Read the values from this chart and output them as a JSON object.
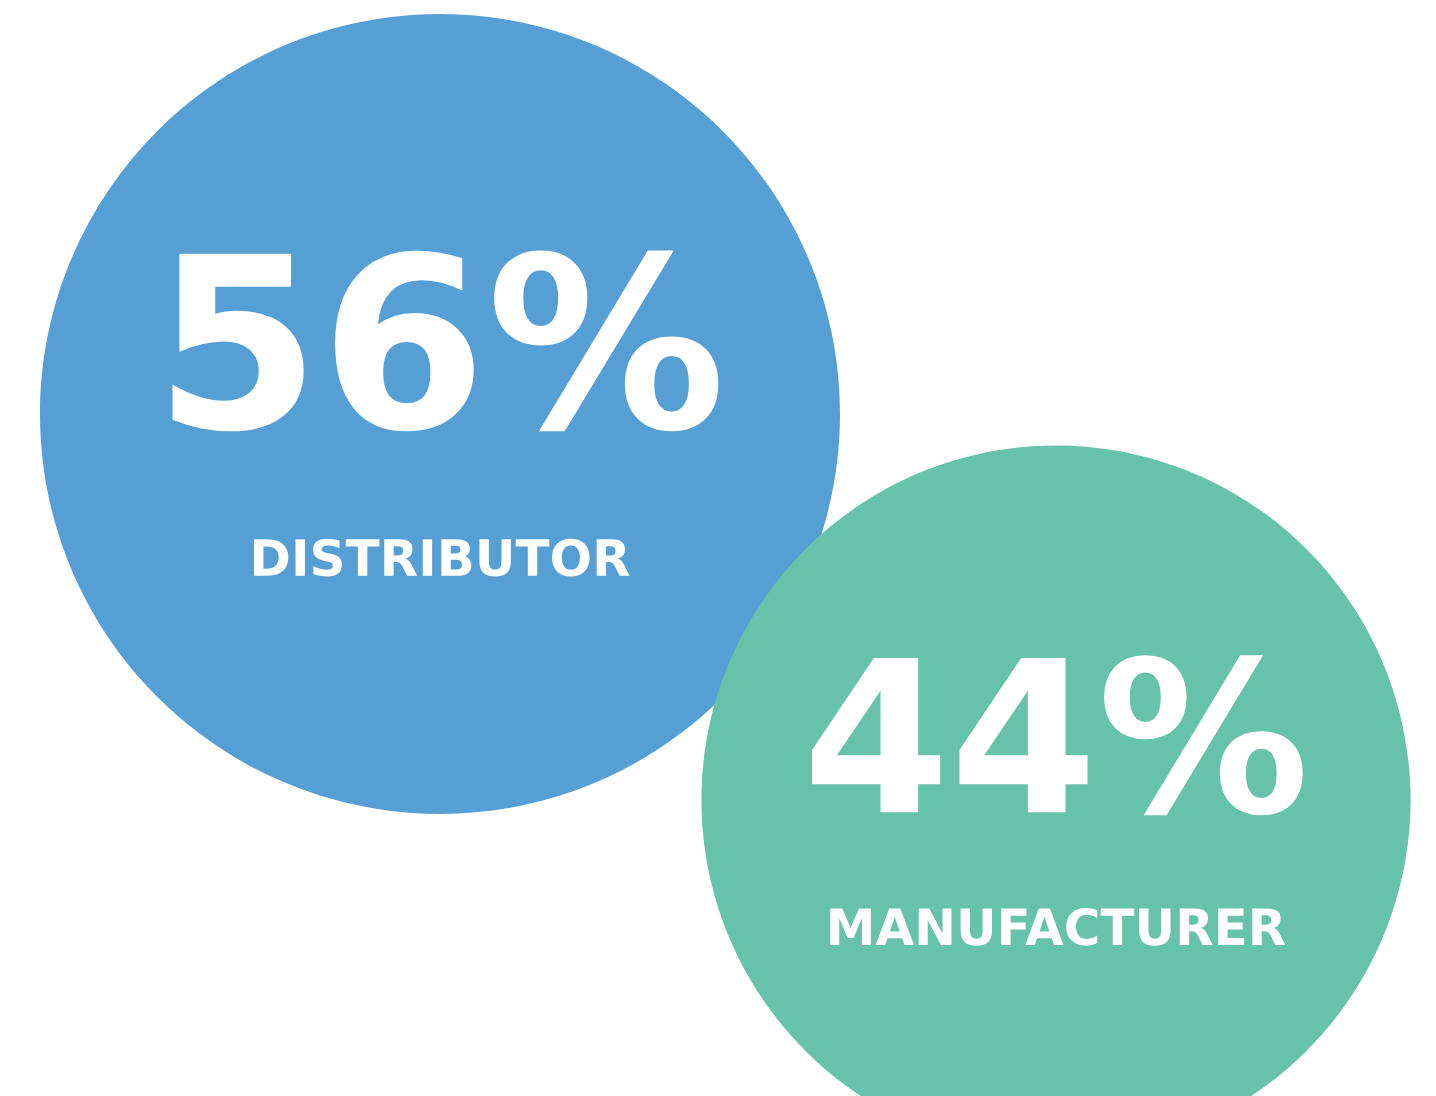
{
  "chart_data": {
    "type": "other",
    "categories": [
      "DISTRIBUTOR",
      "MANUFACTURER"
    ],
    "values": [
      56,
      44
    ],
    "value_labels": [
      "56%",
      "44%"
    ],
    "colors": [
      "#559fd5",
      "#66c2a8"
    ]
  }
}
